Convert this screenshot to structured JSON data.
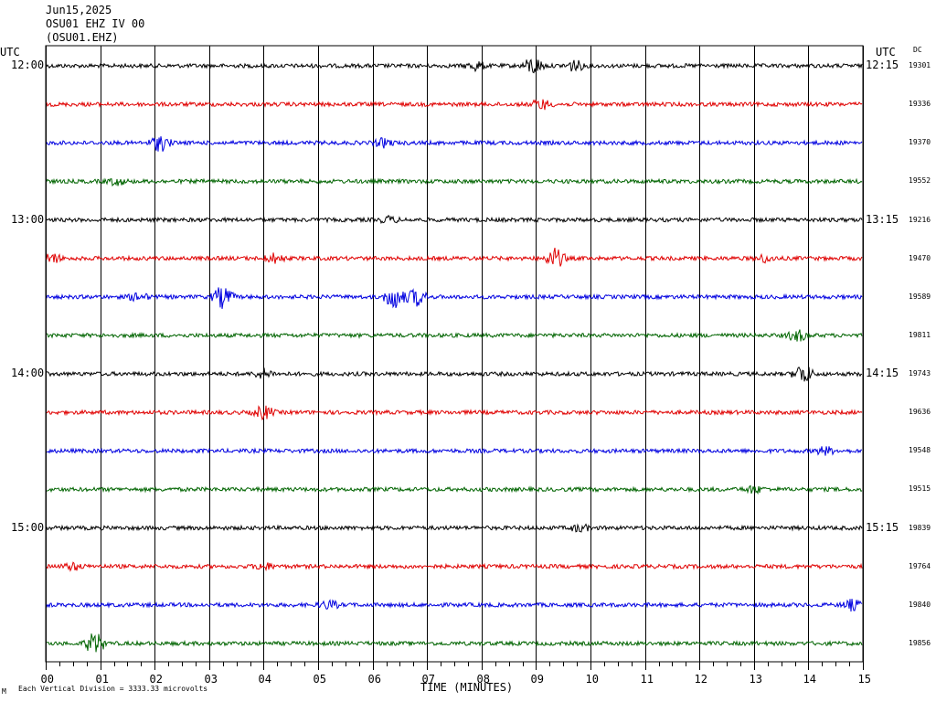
{
  "header": {
    "date": "Jun15,2025",
    "station_line": "OSU01 EHZ IV 00",
    "station_code": "(OSU01.EHZ)"
  },
  "labels": {
    "utc_left": "UTC",
    "utc_right": "UTC",
    "dc": "DC",
    "x_axis_title": "TIME (MINUTES)",
    "footer_marker": "M",
    "scale_note": "Each Vertical Division = 3333.33 microvolts"
  },
  "chart_data": {
    "type": "line",
    "title": "OSU01 EHZ IV 00",
    "xlabel": "TIME (MINUTES)",
    "xlim": [
      0,
      15
    ],
    "x_ticks": [
      "00",
      "01",
      "02",
      "03",
      "04",
      "05",
      "06",
      "07",
      "08",
      "09",
      "10",
      "11",
      "12",
      "13",
      "14",
      "15"
    ],
    "grid": true,
    "trace_colors": [
      "#000000",
      "#e00000",
      "#0000e0",
      "#006400"
    ],
    "rows": [
      {
        "left_time": "12:00",
        "right_time": "12:15",
        "dc": "19301",
        "color": "#000000",
        "events": [
          {
            "minute": 8.95,
            "amp": 1.6
          },
          {
            "minute": 9.7,
            "amp": 1.0
          },
          {
            "minute": 7.9,
            "amp": 0.8
          }
        ]
      },
      {
        "left_time": "",
        "right_time": "",
        "dc": "19336",
        "color": "#e00000",
        "events": [
          {
            "minute": 9.1,
            "amp": 0.9
          }
        ]
      },
      {
        "left_time": "",
        "right_time": "",
        "dc": "19370",
        "color": "#0000e0",
        "events": [
          {
            "minute": 2.1,
            "amp": 1.5
          },
          {
            "minute": 6.2,
            "amp": 0.7
          }
        ]
      },
      {
        "left_time": "",
        "right_time": "",
        "dc": "19552",
        "color": "#006400",
        "events": [
          {
            "minute": 1.3,
            "amp": 0.6
          }
        ]
      },
      {
        "left_time": "13:00",
        "right_time": "13:15",
        "dc": "19216",
        "color": "#000000",
        "events": [
          {
            "minute": 6.3,
            "amp": 0.5
          }
        ]
      },
      {
        "left_time": "",
        "right_time": "",
        "dc": "19470",
        "color": "#e00000",
        "events": [
          {
            "minute": 9.35,
            "amp": 1.8
          },
          {
            "minute": 0.1,
            "amp": 0.9
          },
          {
            "minute": 4.2,
            "amp": 0.8
          },
          {
            "minute": 13.2,
            "amp": 0.6
          }
        ]
      },
      {
        "left_time": "",
        "right_time": "",
        "dc": "19589",
        "color": "#0000e0",
        "events": [
          {
            "minute": 3.25,
            "amp": 2.0
          },
          {
            "minute": 6.4,
            "amp": 2.2
          },
          {
            "minute": 6.8,
            "amp": 1.6
          },
          {
            "minute": 1.7,
            "amp": 0.7
          }
        ]
      },
      {
        "left_time": "",
        "right_time": "",
        "dc": "19811",
        "color": "#006400",
        "events": [
          {
            "minute": 13.8,
            "amp": 1.0
          }
        ]
      },
      {
        "left_time": "14:00",
        "right_time": "14:15",
        "dc": "19743",
        "color": "#000000",
        "events": [
          {
            "minute": 13.9,
            "amp": 1.8
          },
          {
            "minute": 4.0,
            "amp": 0.8
          }
        ]
      },
      {
        "left_time": "",
        "right_time": "",
        "dc": "19636",
        "color": "#e00000",
        "events": [
          {
            "minute": 4.0,
            "amp": 1.2
          }
        ]
      },
      {
        "left_time": "",
        "right_time": "",
        "dc": "19548",
        "color": "#0000e0",
        "events": [
          {
            "minute": 14.3,
            "amp": 0.7
          }
        ]
      },
      {
        "left_time": "",
        "right_time": "",
        "dc": "19515",
        "color": "#006400",
        "events": [
          {
            "minute": 13.0,
            "amp": 0.6
          }
        ]
      },
      {
        "left_time": "15:00",
        "right_time": "15:15",
        "dc": "19839",
        "color": "#000000",
        "events": [
          {
            "minute": 9.8,
            "amp": 0.6
          }
        ]
      },
      {
        "left_time": "",
        "right_time": "",
        "dc": "19764",
        "color": "#e00000",
        "events": [
          {
            "minute": 0.5,
            "amp": 0.6
          },
          {
            "minute": 4.0,
            "amp": 0.6
          }
        ]
      },
      {
        "left_time": "",
        "right_time": "",
        "dc": "19840",
        "color": "#0000e0",
        "events": [
          {
            "minute": 5.2,
            "amp": 0.7
          },
          {
            "minute": 14.8,
            "amp": 0.9
          }
        ]
      },
      {
        "left_time": "",
        "right_time": "",
        "dc": "19856",
        "color": "#006400",
        "events": [
          {
            "minute": 0.9,
            "amp": 2.0
          }
        ]
      }
    ]
  }
}
